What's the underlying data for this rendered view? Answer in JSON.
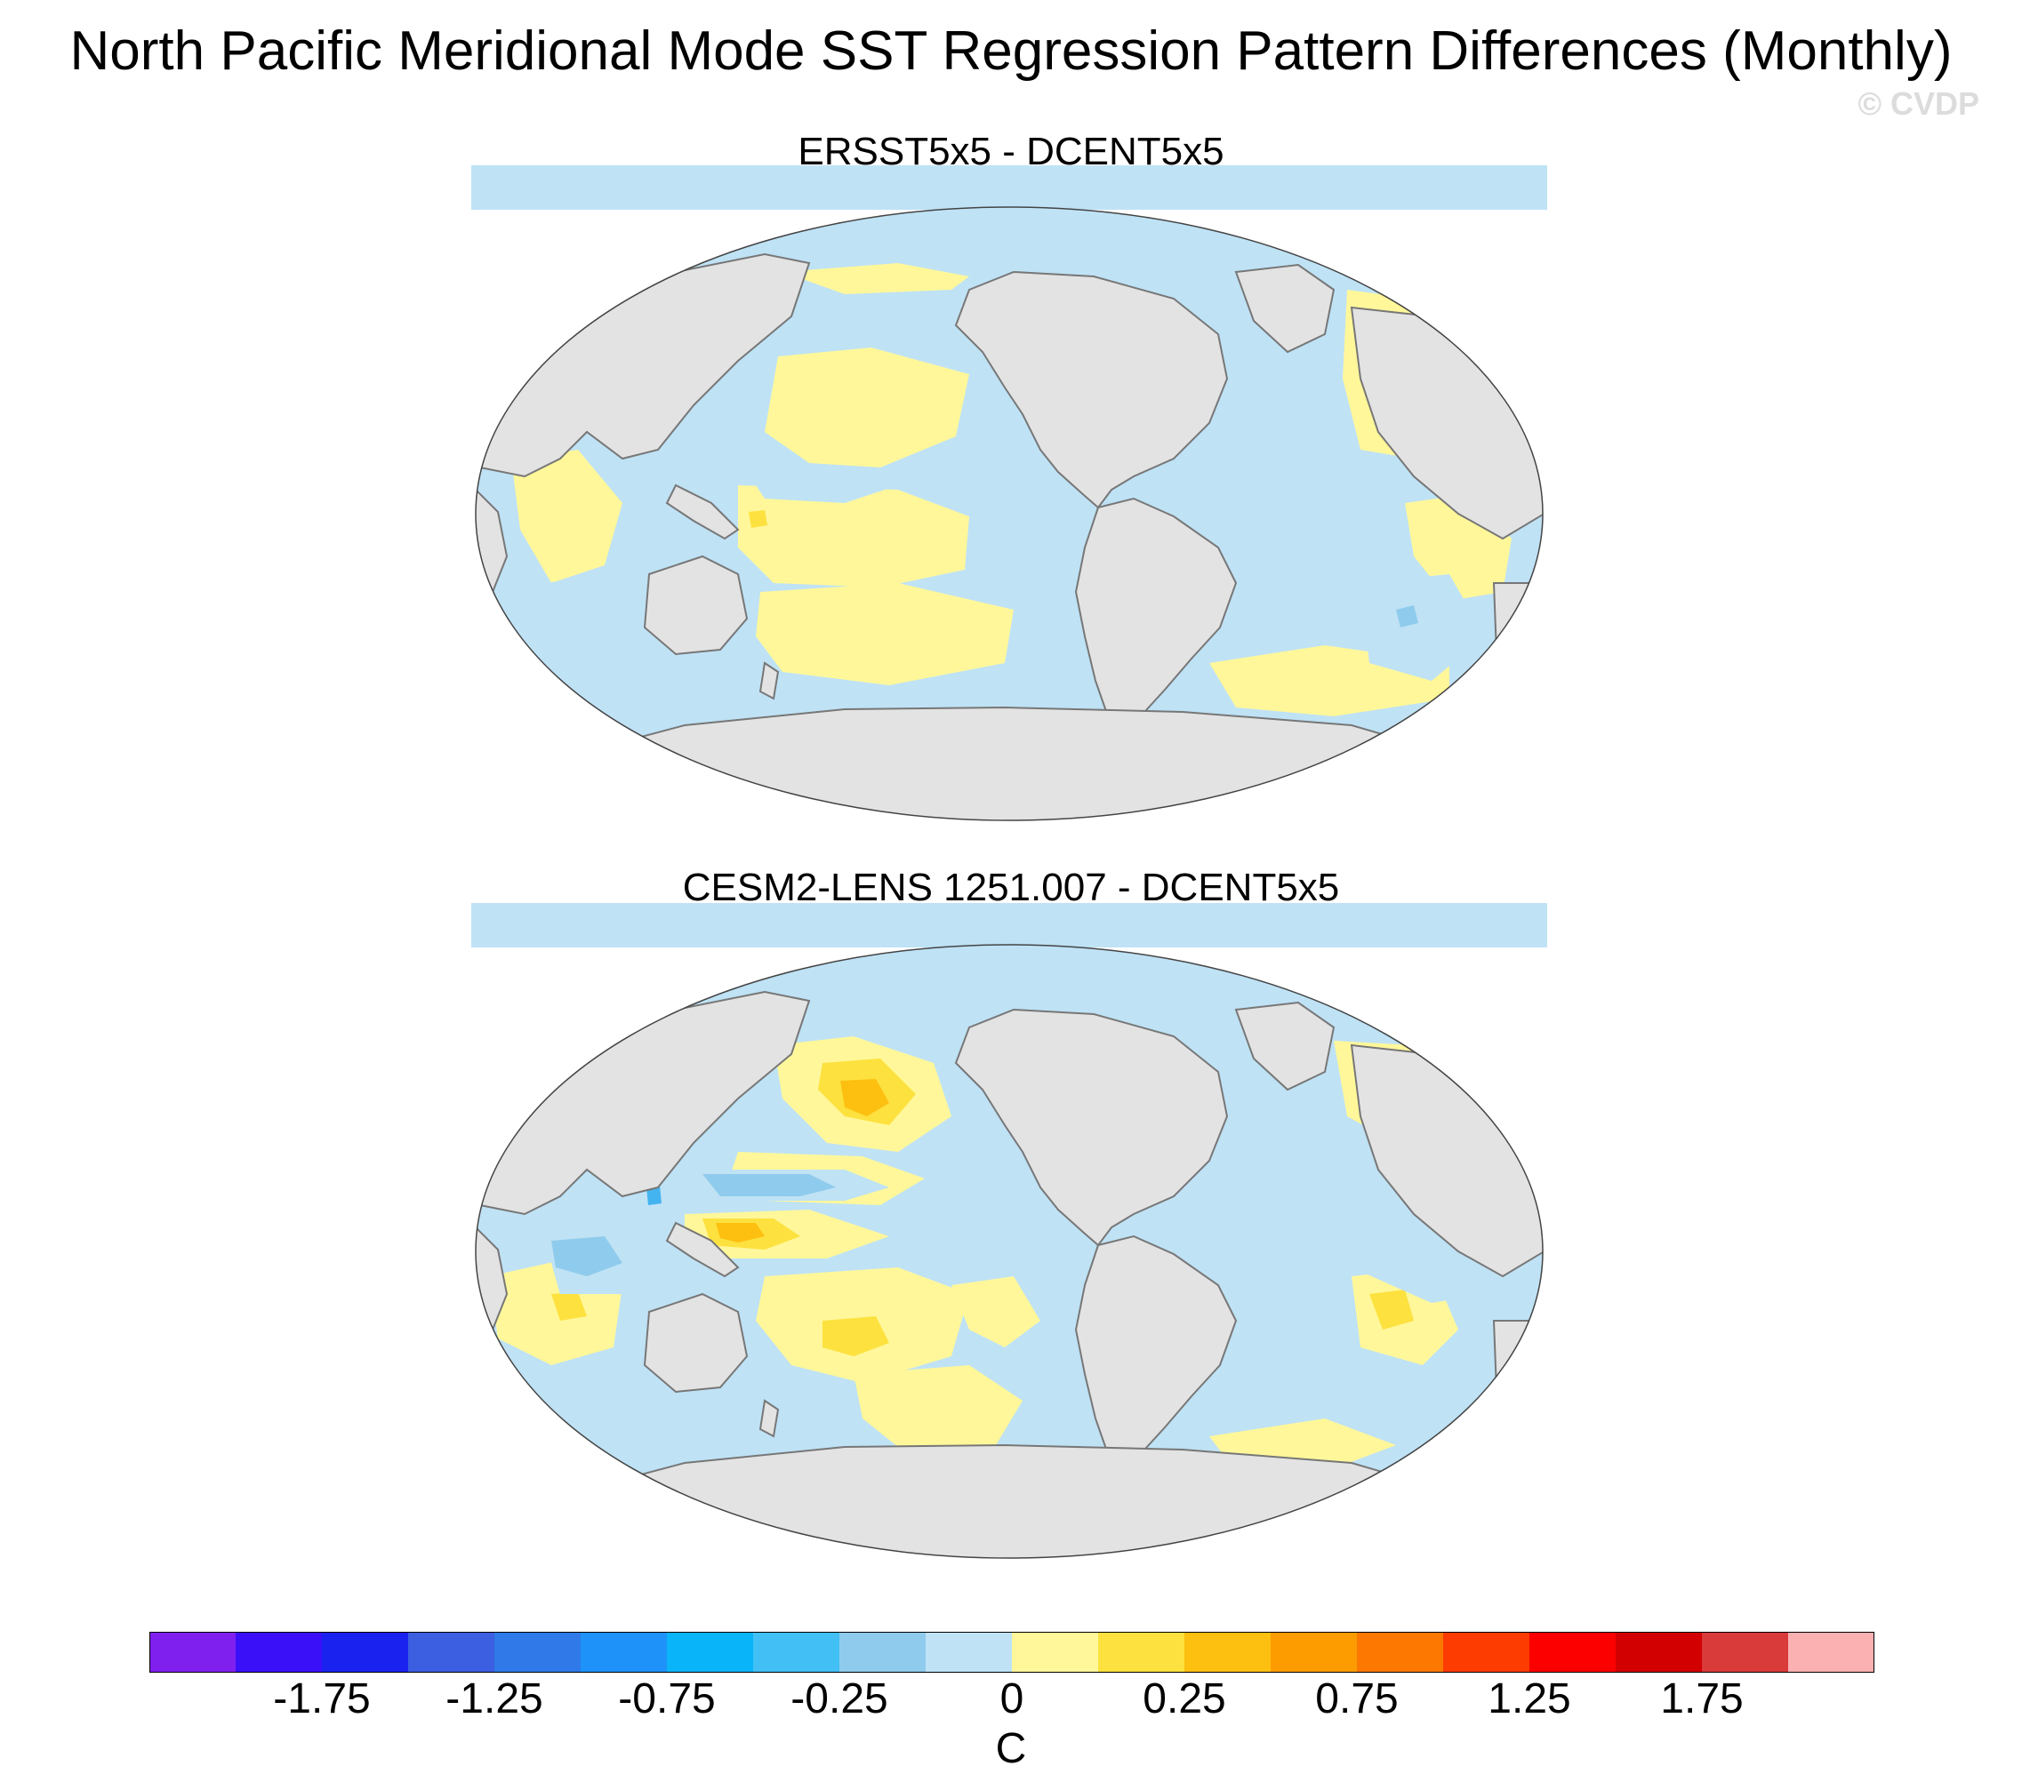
{
  "title": "North Pacific Meridional Mode SST Regression Pattern Differences (Monthly)",
  "watermark": "© CVDP",
  "panels": [
    {
      "title": "ERSST5x5 - DCENT5x5",
      "variant": "top"
    },
    {
      "title": "CESM2-LENS 1251.007 - DCENT5x5",
      "variant": "bottom"
    }
  ],
  "colors": {
    "land": "#e3e3e3",
    "coast": "#777777",
    "pos_weak": "#fff79a",
    "pos_mid": "#fde13e",
    "pos_strong": "#fdbf10",
    "neg_weak": "#bfe2f5",
    "neg_mid": "#8fcbec",
    "neg_strong": "#44b4f0"
  },
  "colorbar": {
    "colors": [
      "#8020ef",
      "#3a10f8",
      "#1a22f0",
      "#3c5ee0",
      "#2f7ae8",
      "#1e92f8",
      "#0ab4f8",
      "#42c0f5",
      "#8fcbec",
      "#bfe2f5",
      "#fff79a",
      "#fde13e",
      "#fdbf10",
      "#fc9c00",
      "#fc7800",
      "#fc3c00",
      "#fc0000",
      "#d20000",
      "#d93a3a",
      "#fbb1b1"
    ],
    "labels": [
      "-1.75",
      "-1.25",
      "-0.75",
      "-0.25",
      "0",
      "0.25",
      "0.75",
      "1.25",
      "1.75"
    ],
    "unit": "C"
  }
}
